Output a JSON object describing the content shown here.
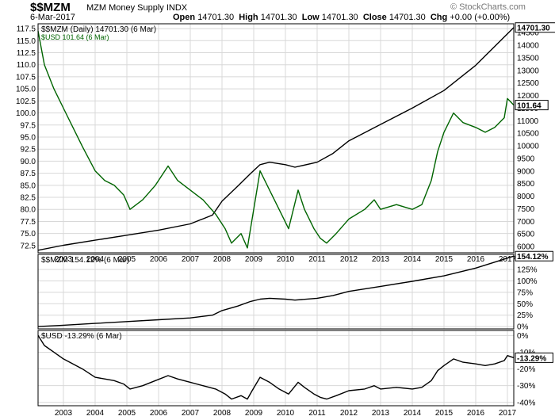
{
  "header": {
    "symbol": "$$MZM",
    "name": "MZM Money Supply INDX",
    "date": "6-Mar-2017",
    "open_label": "Open",
    "open": "14701.30",
    "high_label": "High",
    "high": "14701.30",
    "low_label": "Low",
    "low": "14701.30",
    "close_label": "Close",
    "close": "14701.30",
    "chg_label": "Chg",
    "chg": "+0.00 (+0.00%)",
    "brand": "© StockCharts.com"
  },
  "colors": {
    "mzm": "#000000",
    "usd": "#006400",
    "grid": "#d8d8d8",
    "frame": "#000000"
  },
  "chart_data": [
    {
      "type": "line",
      "panel": "price",
      "legend": [
        "$$MZM (Daily) 14701.30 (6 Mar)",
        "$USD 101.64 (6 Mar)"
      ],
      "x_ticks": [
        "2003",
        "2004",
        "2005",
        "2006",
        "2007",
        "2008",
        "2009",
        "2010",
        "2011",
        "2012",
        "2013",
        "2014",
        "2015",
        "2016",
        "2017"
      ],
      "x_range": [
        2002.2,
        2017.2
      ],
      "y_left": {
        "ticks": [
          "72.5",
          "75.0",
          "77.5",
          "80.0",
          "82.5",
          "85.0",
          "87.5",
          "90.0",
          "92.5",
          "95.0",
          "97.5",
          "100.0",
          "102.5",
          "105.0",
          "107.5",
          "110.0",
          "112.5",
          "115.0",
          "117.5"
        ],
        "range": [
          71,
          118.5
        ]
      },
      "y_right": {
        "ticks": [
          "6000",
          "6500",
          "7000",
          "7500",
          "8000",
          "8500",
          "9000",
          "9500",
          "10000",
          "10500",
          "11000",
          "11500",
          "12000",
          "12500",
          "13000",
          "13500",
          "14000",
          "14500"
        ],
        "range": [
          5750,
          14850
        ]
      },
      "last_values": {
        "mzm": "14701.30",
        "usd": "101.64"
      },
      "series": [
        {
          "name": "$$MZM",
          "axis": "right",
          "x": [
            2002.2,
            2003,
            2004,
            2005,
            2006,
            2007,
            2007.7,
            2008,
            2008.5,
            2008.9,
            2009.2,
            2009.5,
            2010,
            2010.3,
            2011,
            2011.5,
            2012,
            2013,
            2014,
            2015,
            2016,
            2017.2
          ],
          "values": [
            5850,
            6050,
            6250,
            6450,
            6650,
            6900,
            7250,
            7800,
            8400,
            8900,
            9250,
            9350,
            9250,
            9150,
            9350,
            9700,
            10200,
            10850,
            11500,
            12200,
            13200,
            14701
          ]
        },
        {
          "name": "$USD",
          "axis": "left",
          "x": [
            2002.2,
            2002.4,
            2002.7,
            2003,
            2003.3,
            2003.6,
            2004,
            2004.3,
            2004.6,
            2004.9,
            2005.1,
            2005.5,
            2005.9,
            2006.3,
            2006.6,
            2007,
            2007.4,
            2007.8,
            2008.1,
            2008.3,
            2008.6,
            2008.8,
            2008.95,
            2009.2,
            2009.5,
            2009.8,
            2010.1,
            2010.4,
            2010.6,
            2010.9,
            2011.1,
            2011.3,
            2011.6,
            2012,
            2012.5,
            2012.8,
            2013,
            2013.5,
            2014,
            2014.3,
            2014.6,
            2014.8,
            2015,
            2015.3,
            2015.6,
            2016,
            2016.3,
            2016.6,
            2016.9,
            2017,
            2017.2
          ],
          "values": [
            117,
            110,
            105,
            101,
            97,
            93,
            88,
            86,
            85,
            83,
            80,
            82,
            85,
            89,
            86,
            84,
            82,
            79,
            76,
            73,
            75,
            72,
            78,
            88,
            84,
            80,
            76,
            84,
            80,
            76,
            74,
            73,
            75,
            78,
            80,
            82,
            80,
            81,
            80,
            81,
            86,
            92,
            96,
            100,
            98,
            97,
            96,
            97,
            99,
            103,
            101.64
          ]
        }
      ]
    },
    {
      "type": "line",
      "panel": "mzm-percent",
      "legend": [
        "$$MZM 154.12% (6 Mar)"
      ],
      "x_range": [
        2002.2,
        2017.2
      ],
      "y_right": {
        "ticks": [
          "0%",
          "25%",
          "50%",
          "75%",
          "100%",
          "125%"
        ],
        "range": [
          -5,
          158
        ]
      },
      "last_value": "154.12%",
      "series": [
        {
          "name": "$$MZM",
          "x": [
            2002.2,
            2003,
            2004,
            2005,
            2006,
            2007,
            2007.7,
            2008,
            2008.5,
            2008.9,
            2009.2,
            2009.5,
            2010,
            2010.3,
            2011,
            2011.5,
            2012,
            2013,
            2014,
            2015,
            2016,
            2017.2
          ],
          "values": [
            0,
            3,
            7,
            11,
            15,
            19,
            25,
            35,
            45,
            55,
            60,
            62,
            60,
            58,
            62,
            68,
            77,
            88,
            99,
            111,
            128,
            154.12
          ]
        }
      ]
    },
    {
      "type": "line",
      "panel": "usd-percent",
      "legend": [
        "$USD -13.29% (6 Mar)"
      ],
      "x_ticks": [
        "2003",
        "2004",
        "2005",
        "2006",
        "2007",
        "2008",
        "2009",
        "2010",
        "2011",
        "2012",
        "2013",
        "2014",
        "2015",
        "2016",
        "2017"
      ],
      "x_range": [
        2002.2,
        2017.2
      ],
      "y_right": {
        "ticks": [
          "0%",
          "-10%",
          "-20%",
          "-30%",
          "-40%"
        ],
        "range": [
          -42,
          3
        ]
      },
      "last_value": "-13.29%",
      "series": [
        {
          "name": "$USD",
          "x": [
            2002.2,
            2002.4,
            2002.7,
            2003,
            2003.3,
            2003.6,
            2004,
            2004.3,
            2004.6,
            2004.9,
            2005.1,
            2005.5,
            2005.9,
            2006.3,
            2006.6,
            2007,
            2007.4,
            2007.8,
            2008.1,
            2008.3,
            2008.6,
            2008.8,
            2008.95,
            2009.2,
            2009.5,
            2009.8,
            2010.1,
            2010.4,
            2010.6,
            2010.9,
            2011.1,
            2011.3,
            2011.6,
            2012,
            2012.5,
            2012.8,
            2013,
            2013.5,
            2014,
            2014.3,
            2014.6,
            2014.8,
            2015,
            2015.3,
            2015.6,
            2016,
            2016.3,
            2016.6,
            2016.9,
            2017,
            2017.2
          ],
          "values": [
            0,
            -6,
            -10,
            -14,
            -17,
            -20,
            -25,
            -26,
            -27,
            -29,
            -32,
            -30,
            -27,
            -24,
            -26,
            -28,
            -30,
            -32,
            -35,
            -38,
            -36,
            -38,
            -33,
            -25,
            -28,
            -32,
            -35,
            -28,
            -31,
            -35,
            -37,
            -38,
            -36,
            -33,
            -32,
            -30,
            -32,
            -31,
            -32,
            -31,
            -27,
            -21,
            -18,
            -14,
            -16,
            -17,
            -18,
            -17,
            -15,
            -12,
            -13.29
          ]
        }
      ]
    }
  ]
}
